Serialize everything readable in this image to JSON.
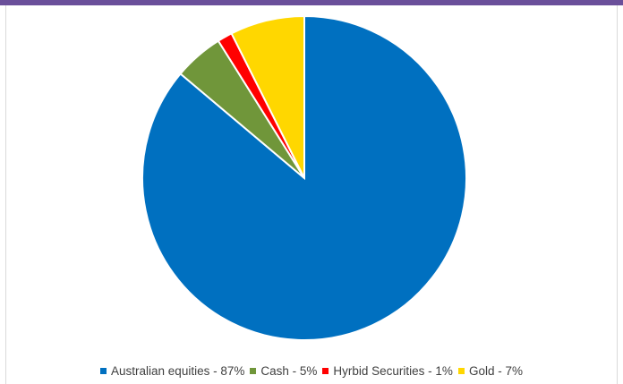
{
  "colors": {
    "top_bar": "#6a4f9a"
  },
  "chart_data": {
    "type": "pie",
    "title": "",
    "legend_position": "bottom",
    "slices": [
      {
        "label": "Australian equities - 87%",
        "value": 87,
        "color": "#0070c0"
      },
      {
        "label": "Cash - 5%",
        "value": 5,
        "color": "#70963a"
      },
      {
        "label": "Hyrbid Securities - 1%",
        "value": 1.5,
        "color": "#ff0000"
      },
      {
        "label": "Gold - 7%",
        "value": 7.5,
        "color": "#ffd700"
      }
    ]
  }
}
